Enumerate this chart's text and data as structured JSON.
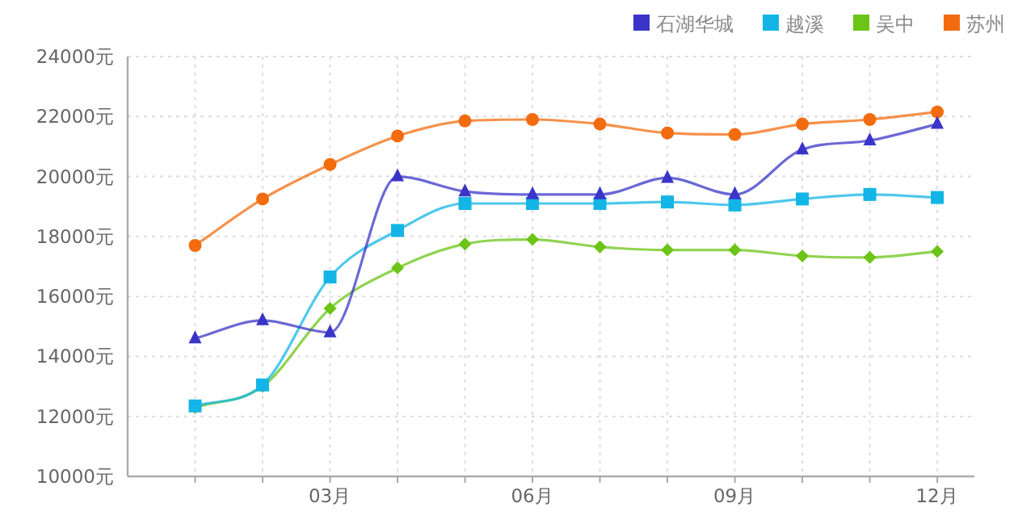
{
  "chart_data": {
    "type": "line",
    "categories": [
      null,
      null,
      "03月",
      null,
      null,
      "06月",
      null,
      null,
      "09月",
      null,
      null,
      "12月"
    ],
    "ylim": [
      10000,
      24000
    ],
    "yticks": [
      {
        "value": 10000,
        "label": "10000元"
      },
      {
        "value": 12000,
        "label": "12000元"
      },
      {
        "value": 14000,
        "label": "14000元"
      },
      {
        "value": 16000,
        "label": "16000元"
      },
      {
        "value": 18000,
        "label": "18000元"
      },
      {
        "value": 20000,
        "label": "20000元"
      },
      {
        "value": 22000,
        "label": "22000元"
      },
      {
        "value": 24000,
        "label": "24000元"
      }
    ],
    "grid": true,
    "legend": "top right",
    "series": [
      {
        "name": "石湖华城",
        "color": "#3a35c8",
        "marker": "triangle",
        "values": [
          14600,
          15200,
          14800,
          20000,
          19500,
          19400,
          19400,
          19950,
          19400,
          20900,
          21200,
          21750
        ]
      },
      {
        "name": "越溪",
        "color": "#13b5e6",
        "marker": "square",
        "values": [
          12350,
          13050,
          16650,
          18200,
          19100,
          19100,
          19100,
          19150,
          19050,
          19250,
          19400,
          19300
        ]
      },
      {
        "name": "吴中",
        "color": "#6cc417",
        "marker": "diamond",
        "values": [
          12300,
          13000,
          15600,
          16950,
          17750,
          17900,
          17650,
          17550,
          17550,
          17350,
          17300,
          17500
        ]
      },
      {
        "name": "苏州",
        "color": "#f26c0f",
        "marker": "circle",
        "values": [
          17700,
          19250,
          20400,
          21350,
          21850,
          21900,
          21750,
          21450,
          21400,
          21750,
          21900,
          22150
        ]
      }
    ]
  }
}
